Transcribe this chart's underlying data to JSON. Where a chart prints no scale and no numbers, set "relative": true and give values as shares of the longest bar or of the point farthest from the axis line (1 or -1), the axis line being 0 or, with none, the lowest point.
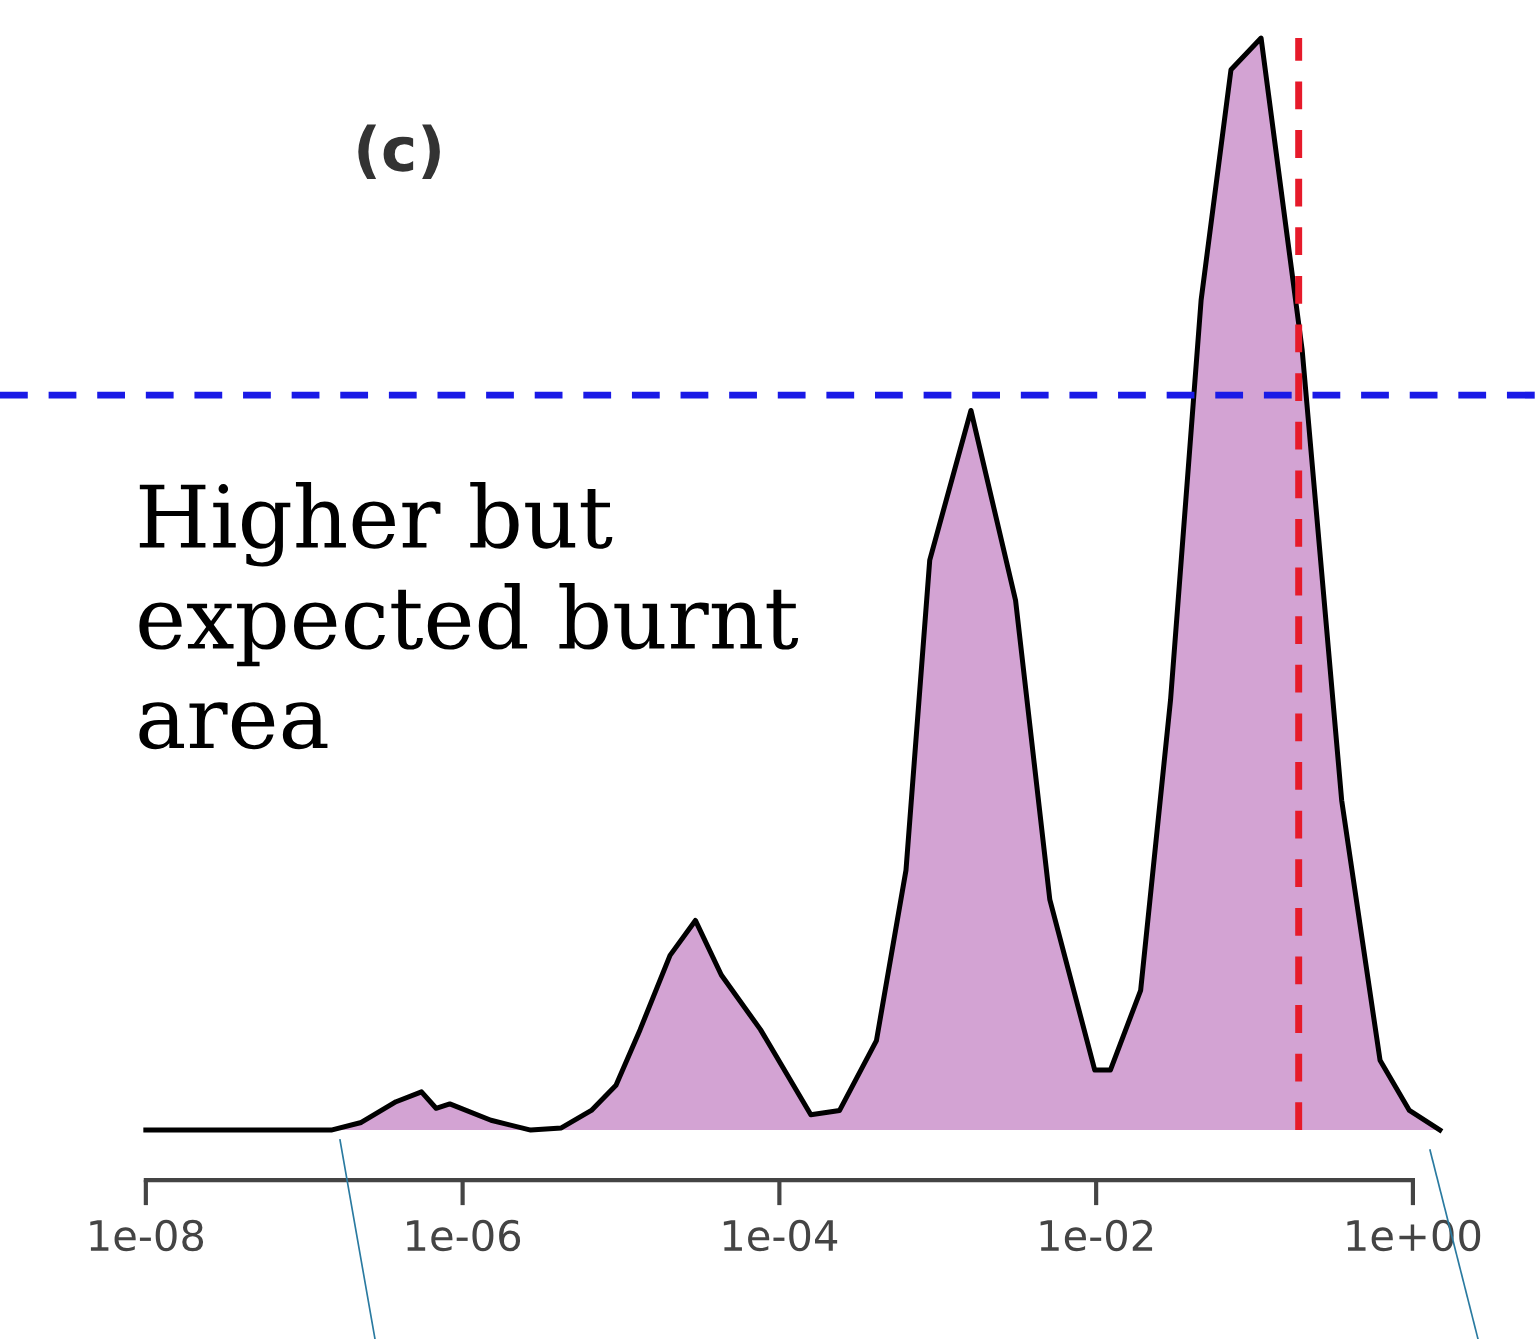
{
  "chart_data": {
    "type": "area",
    "relative": true,
    "log": "x",
    "x": [
      1e-08,
      1.48e-07,
      2.29e-07,
      3.8e-07,
      5.5e-07,
      6.8e-07,
      8.3e-07,
      1.51e-06,
      2.69e-06,
      4.2e-06,
      6.5e-06,
      9.3e-06,
      1.32e-05,
      2.04e-05,
      2.95e-05,
      4.3e-05,
      7.6e-05,
      0.000158,
      0.00024,
      0.00041,
      0.00063,
      0.00089,
      0.00162,
      0.0031,
      0.0051,
      0.0098,
      0.0123,
      0.0191,
      0.0295,
      0.046,
      0.071,
      0.11,
      0.2,
      0.355,
      0.62,
      0.95,
      1.48
    ],
    "series": [
      {
        "color": "#d3a3d3",
        "values": [
          0,
          0,
          0.007,
          0.026,
          0.035,
          0.02,
          0.024,
          0.009,
          0,
          0.002,
          0.018,
          0.041,
          0.092,
          0.16,
          0.192,
          0.142,
          0.092,
          0.014,
          0.018,
          0.082,
          0.238,
          0.522,
          0.659,
          0.485,
          0.211,
          0.055,
          0.055,
          0.128,
          0.394,
          0.76,
          0.971,
          1.0,
          0.714,
          0.302,
          0.064,
          0.018,
          0
        ]
      }
    ],
    "xlim": [
      1.2e-09,
      5.9
    ],
    "xticks": [
      {
        "value": 1e-08,
        "label": "1e-08"
      },
      {
        "value": 1e-06,
        "label": "1e-06"
      },
      {
        "value": 0.0001,
        "label": "1e-04"
      },
      {
        "value": 0.01,
        "label": "1e-02"
      },
      {
        "value": 1,
        "label": "1e+00"
      }
    ],
    "tick_labels": "x",
    "grid": false,
    "ref_lines": [
      {
        "axis": "y",
        "value": 0.673,
        "color": "#1a1ae6",
        "line_style": "dashed"
      },
      {
        "axis": "x",
        "value": 0.19,
        "color": "#e61a2a",
        "line_style": "dashed"
      }
    ],
    "annotations": [
      "(c)",
      "Higher but\nexpected burnt\narea"
    ]
  }
}
